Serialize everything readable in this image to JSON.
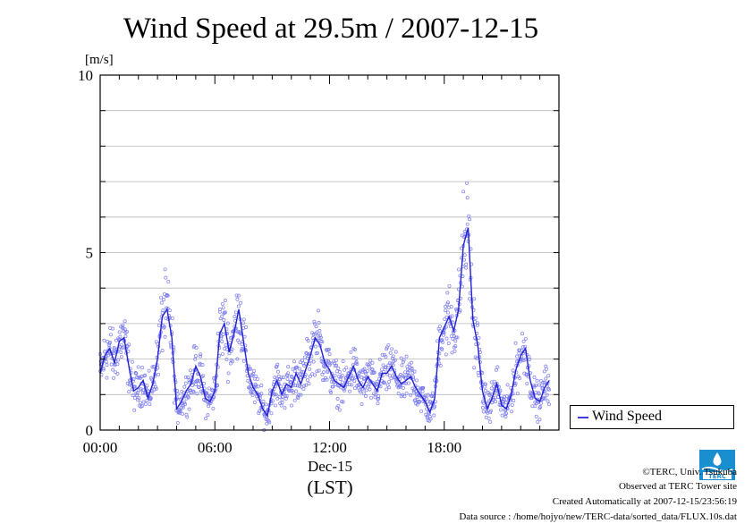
{
  "chart_data": {
    "type": "scatter",
    "title": "Wind Speed at 29.5m / 2007-12-15",
    "ylabel": "[m/s]",
    "xlabel": "(LST)",
    "date_label": "Dec-15",
    "ylim": [
      0,
      10
    ],
    "xlim": [
      "00:00",
      "24:00"
    ],
    "y_ticks": [
      "0",
      "5",
      "10"
    ],
    "x_ticks": [
      "00:00",
      "06:00",
      "12:00",
      "18:00"
    ],
    "grid": true,
    "legend_position": "right",
    "series": [
      {
        "name": "Wind Speed",
        "color": "#3b3bdd",
        "time_hours": [
          0,
          0.25,
          0.5,
          0.75,
          1,
          1.25,
          1.5,
          1.75,
          2,
          2.25,
          2.5,
          2.75,
          3,
          3.25,
          3.5,
          3.75,
          4,
          4.25,
          4.5,
          4.75,
          5,
          5.25,
          5.5,
          5.75,
          6,
          6.25,
          6.5,
          6.75,
          7,
          7.25,
          7.5,
          7.75,
          8,
          8.25,
          8.5,
          8.75,
          9,
          9.25,
          9.5,
          9.75,
          10,
          10.25,
          10.5,
          10.75,
          11,
          11.25,
          11.5,
          11.75,
          12,
          12.25,
          12.5,
          12.75,
          13,
          13.25,
          13.5,
          13.75,
          14,
          14.25,
          14.5,
          14.75,
          15,
          15.25,
          15.5,
          15.75,
          16,
          16.25,
          16.5,
          16.75,
          17,
          17.25,
          17.5,
          17.75,
          18,
          18.25,
          18.5,
          18.75,
          19,
          19.25,
          19.5,
          19.75,
          20,
          20.25,
          20.5,
          20.75,
          21,
          21.25,
          21.5,
          21.75,
          22,
          22.25,
          22.5,
          22.75,
          23,
          23.25,
          23.5
        ],
        "mean_speed": [
          1.6,
          2.1,
          2.3,
          1.9,
          2.5,
          2.6,
          1.8,
          1.1,
          1.2,
          1.4,
          0.9,
          1.3,
          2.0,
          3.2,
          3.4,
          2.6,
          0.6,
          0.8,
          1.1,
          1.3,
          1.8,
          1.5,
          0.9,
          0.8,
          1.1,
          2.7,
          3.0,
          2.2,
          2.7,
          3.4,
          2.5,
          1.6,
          1.2,
          1.0,
          0.6,
          0.4,
          1.1,
          1.4,
          1.0,
          1.3,
          1.2,
          1.6,
          1.3,
          1.7,
          2.1,
          2.6,
          2.4,
          1.9,
          1.7,
          1.4,
          1.3,
          1.2,
          1.5,
          1.8,
          1.4,
          1.2,
          1.5,
          1.3,
          1.1,
          1.6,
          1.6,
          1.8,
          1.5,
          1.3,
          1.4,
          1.5,
          1.2,
          1.0,
          0.8,
          0.5,
          0.9,
          2.6,
          2.9,
          3.2,
          2.8,
          3.4,
          5.2,
          5.7,
          3.1,
          2.4,
          1.1,
          0.6,
          0.9,
          1.3,
          0.7,
          0.6,
          1.0,
          1.7,
          2.1,
          2.3,
          1.4,
          0.9,
          0.8,
          1.2,
          1.4
        ]
      }
    ]
  },
  "legend": {
    "label": "Wind Speed"
  },
  "credits": {
    "line1": "©TERC, Univ. Tsukuba",
    "line2": "Observed at TERC Tower site",
    "line3": "Created Automatically at 2007-12-15/23:56:19",
    "line4": "Data source : /home/hojyo/new/TERC-data/sorted_data/FLUX.10s.dat"
  },
  "logo": {
    "text": "TERC",
    "color": "#1a8fd0"
  }
}
